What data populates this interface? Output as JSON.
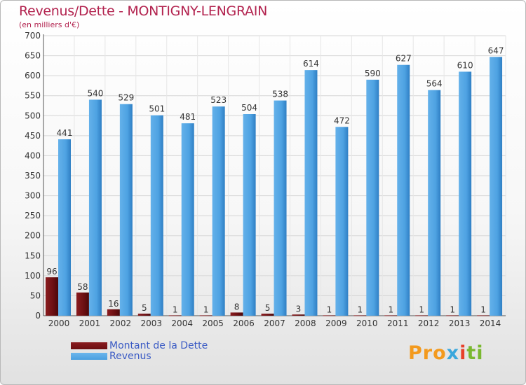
{
  "title": "Revenus/Dette - MONTIGNY-LENGRAIN",
  "subtitle": "(en milliers d'€)",
  "logo": [
    "Pro",
    "x",
    "i",
    "ti"
  ],
  "colors": {
    "dette": "#6b0f12",
    "revenus": "#4a9fe0",
    "title": "#b2224e",
    "legend_text": "#3a5ac4"
  },
  "chart_data": {
    "type": "bar",
    "title": "Revenus/Dette - MONTIGNY-LENGRAIN",
    "subtitle": "(en milliers d'€)",
    "categories": [
      "2000",
      "2001",
      "2002",
      "2003",
      "2004",
      "2005",
      "2006",
      "2007",
      "2008",
      "2009",
      "2010",
      "2011",
      "2012",
      "2013",
      "2014"
    ],
    "series": [
      {
        "name": "Montant de la Dette",
        "color": "#6b0f12",
        "values": [
          96,
          58,
          16,
          5,
          1,
          1,
          8,
          5,
          3,
          1,
          1,
          1,
          1,
          1,
          1
        ]
      },
      {
        "name": "Revenus",
        "color": "#4a9fe0",
        "values": [
          441,
          540,
          529,
          501,
          481,
          523,
          504,
          538,
          614,
          472,
          590,
          627,
          564,
          610,
          647
        ]
      }
    ],
    "yticks": [
      0,
      50,
      100,
      150,
      200,
      250,
      300,
      350,
      400,
      450,
      500,
      550,
      600,
      650,
      700
    ],
    "ylim": [
      0,
      700
    ],
    "grid": true,
    "legend": "bottom-left"
  }
}
